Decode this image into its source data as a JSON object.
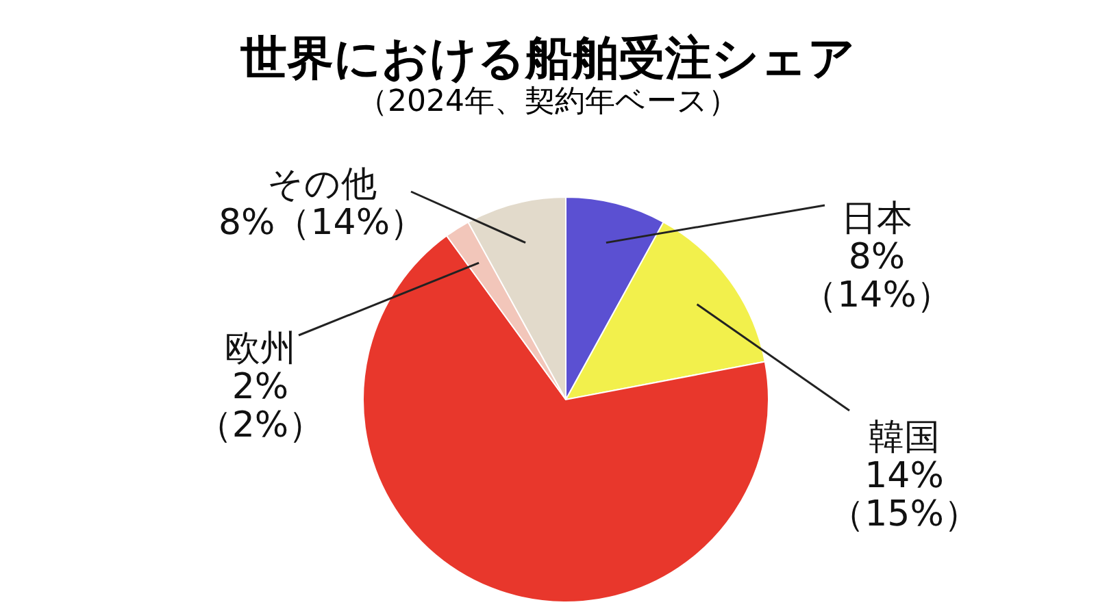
{
  "chart_data": {
    "type": "pie",
    "title": "世界における船舶受注シェア",
    "subtitle": "（2024年、契約年ベース）",
    "categories": [
      "日本",
      "韓国",
      null,
      "欧州",
      "その他"
    ],
    "values": [
      8,
      14,
      68,
      2,
      8
    ],
    "value_labels": [
      "8%\n（14%）",
      "14%\n（15%）",
      null,
      "2%\n（2%）",
      "8%（14%）"
    ],
    "colors": [
      "#5b50d2",
      "#f2f04c",
      "#e8372c",
      "#f2c6ba",
      "#e2dacb"
    ]
  }
}
